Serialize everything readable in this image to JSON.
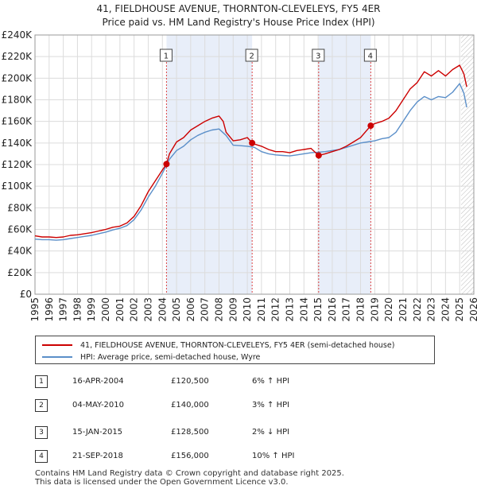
{
  "chart_data": {
    "type": "line",
    "title": "41, FIELDHOUSE AVENUE, THORNTON-CLEVELEYS, FY5 4ER",
    "subtitle": "Price paid vs. HM Land Registry's House Price Index (HPI)",
    "xlabel": "",
    "ylabel": "",
    "xlim": [
      1995,
      2026
    ],
    "ylim": [
      0,
      240000
    ],
    "x_ticks": [
      "1995",
      "1996",
      "1997",
      "1998",
      "1999",
      "2000",
      "2001",
      "2002",
      "2003",
      "2004",
      "2005",
      "2006",
      "2007",
      "2008",
      "2009",
      "2010",
      "2011",
      "2012",
      "2013",
      "2014",
      "2015",
      "2016",
      "2017",
      "2018",
      "2019",
      "2020",
      "2021",
      "2022",
      "2023",
      "2024",
      "2025",
      "2026"
    ],
    "y_ticks": [
      "£0",
      "£20K",
      "£40K",
      "£60K",
      "£80K",
      "£100K",
      "£120K",
      "£140K",
      "£160K",
      "£180K",
      "£200K",
      "£220K",
      "£240K"
    ],
    "series": [
      {
        "name": "41, FIELDHOUSE AVENUE, THORNTON-CLEVELEYS, FY5 4ER (semi-detached house)",
        "color": "#cc0000",
        "x": [
          1995,
          1995.5,
          1996,
          1996.5,
          1997,
          1997.5,
          1998,
          1998.5,
          1999,
          1999.5,
          2000,
          2000.5,
          2001,
          2001.5,
          2002,
          2002.5,
          2003,
          2003.5,
          2004,
          2004.29,
          2004.5,
          2005,
          2005.5,
          2006,
          2006.5,
          2007,
          2007.5,
          2008,
          2008.3,
          2008.5,
          2009,
          2009.5,
          2010,
          2010.34,
          2010.5,
          2011,
          2011.5,
          2012,
          2012.5,
          2013,
          2013.5,
          2014,
          2014.5,
          2015.04,
          2015.5,
          2016,
          2016.5,
          2017,
          2017.5,
          2018,
          2018.72,
          2019,
          2019.5,
          2020,
          2020.5,
          2021,
          2021.5,
          2022,
          2022.5,
          2023,
          2023.5,
          2024,
          2024.5,
          2025,
          2025.3,
          2025.5
        ],
        "y": [
          54000,
          53000,
          53000,
          52500,
          53000,
          54500,
          55000,
          56000,
          57000,
          58500,
          60000,
          62000,
          63000,
          66000,
          72000,
          82000,
          95000,
          105000,
          115000,
          120500,
          130000,
          141000,
          145000,
          152000,
          156000,
          160000,
          163000,
          165000,
          160000,
          150000,
          142000,
          143000,
          145000,
          140000,
          139000,
          137000,
          134000,
          132000,
          132000,
          131000,
          133000,
          134000,
          135000,
          128500,
          130000,
          132000,
          134000,
          137000,
          141000,
          145000,
          156000,
          158000,
          160000,
          163000,
          170000,
          180000,
          190000,
          196000,
          206000,
          202000,
          207000,
          202000,
          208000,
          212000,
          204000,
          192000
        ]
      },
      {
        "name": "HPI: Average price, semi-detached house, Wyre",
        "color": "#5b8fc9",
        "x": [
          1995,
          1995.5,
          1996,
          1996.5,
          1997,
          1997.5,
          1998,
          1998.5,
          1999,
          1999.5,
          2000,
          2000.5,
          2001,
          2001.5,
          2002,
          2002.5,
          2003,
          2003.5,
          2004,
          2004.5,
          2005,
          2005.5,
          2006,
          2006.5,
          2007,
          2007.5,
          2008,
          2008.5,
          2009,
          2009.5,
          2010,
          2010.5,
          2011,
          2011.5,
          2012,
          2012.5,
          2013,
          2013.5,
          2014,
          2014.5,
          2015,
          2015.5,
          2016,
          2016.5,
          2017,
          2017.5,
          2018,
          2018.5,
          2019,
          2019.5,
          2020,
          2020.5,
          2021,
          2021.5,
          2022,
          2022.5,
          2023,
          2023.5,
          2024,
          2024.5,
          2025,
          2025.3,
          2025.5
        ],
        "y": [
          51000,
          50500,
          50500,
          50000,
          50500,
          51500,
          52500,
          53500,
          54500,
          56000,
          57500,
          59500,
          61000,
          63500,
          69000,
          78000,
          90000,
          100000,
          112000,
          125000,
          133000,
          137000,
          143000,
          147000,
          150000,
          152000,
          153000,
          147000,
          138000,
          137500,
          137000,
          136000,
          132000,
          130000,
          129000,
          128500,
          128000,
          129000,
          130000,
          131000,
          131500,
          132000,
          133000,
          134000,
          136000,
          138000,
          140000,
          141000,
          142000,
          144000,
          145000,
          150000,
          160000,
          170000,
          178000,
          183000,
          180000,
          183000,
          182000,
          187000,
          195000,
          186000,
          173000
        ]
      }
    ],
    "sales": [
      {
        "label": "1",
        "x": 2004.29,
        "y": 120500
      },
      {
        "label": "2",
        "x": 2010.34,
        "y": 140000
      },
      {
        "label": "3",
        "x": 2015.04,
        "y": 128500
      },
      {
        "label": "4",
        "x": 2018.72,
        "y": 156000
      }
    ],
    "shaded_ranges": [
      [
        2004.29,
        2010.34
      ],
      [
        2015.04,
        2018.72
      ]
    ],
    "hatched_from": 2025.1
  },
  "legend": {
    "property_label": "41, FIELDHOUSE AVENUE, THORNTON-CLEVELEYS, FY5 4ER (semi-detached house)",
    "hpi_label": "HPI: Average price, semi-detached house, Wyre"
  },
  "sales_table": [
    {
      "num": "1",
      "date": "16-APR-2004",
      "price": "£120,500",
      "hpi": "6% ↑ HPI"
    },
    {
      "num": "2",
      "date": "04-MAY-2010",
      "price": "£140,000",
      "hpi": "3% ↑ HPI"
    },
    {
      "num": "3",
      "date": "15-JAN-2015",
      "price": "£128,500",
      "hpi": "2% ↓ HPI"
    },
    {
      "num": "4",
      "date": "21-SEP-2018",
      "price": "£156,000",
      "hpi": "10% ↑ HPI"
    }
  ],
  "footer": {
    "line1": "Contains HM Land Registry data © Crown copyright and database right 2025.",
    "line2": "This data is licensed under the Open Government Licence v3.0."
  }
}
